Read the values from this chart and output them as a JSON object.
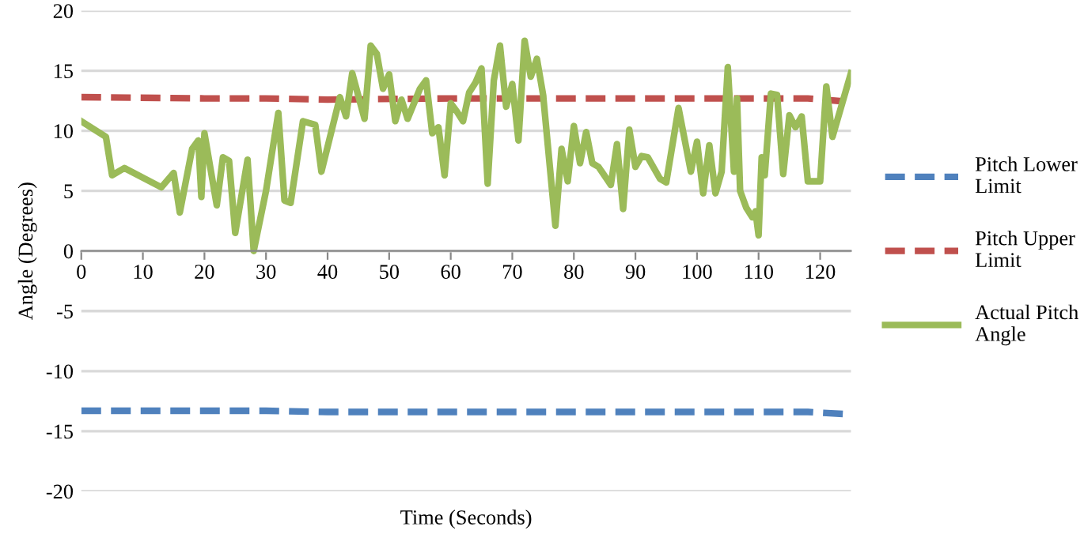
{
  "chart_data": {
    "type": "line",
    "xlabel": "Time (Seconds)",
    "ylabel": "Angle (Degrees)",
    "xlim": [
      0,
      125
    ],
    "xticks": [
      0,
      10,
      20,
      30,
      40,
      50,
      60,
      70,
      80,
      90,
      100,
      110,
      120
    ],
    "ylim": [
      -20,
      20
    ],
    "yticks": [
      -20,
      -15,
      -10,
      -5,
      0,
      5,
      10,
      15,
      20
    ],
    "grid": "y",
    "legend": "right",
    "line_style": "solid",
    "marker": "none",
    "series": [
      {
        "name": "Pitch Lower Limit",
        "color": "#4f81bd",
        "line_style": "dashed",
        "x": [
          0,
          20,
          30,
          40,
          60,
          80,
          100,
          110,
          118,
          125
        ],
        "values": [
          -13.3,
          -13.3,
          -13.3,
          -13.4,
          -13.4,
          -13.4,
          -13.4,
          -13.4,
          -13.4,
          -13.6
        ]
      },
      {
        "name": "Pitch Upper Limit",
        "color": "#c0504d",
        "line_style": "dashed",
        "x": [
          0,
          20,
          30,
          40,
          60,
          80,
          100,
          110,
          118,
          125
        ],
        "values": [
          12.8,
          12.7,
          12.7,
          12.6,
          12.7,
          12.7,
          12.7,
          12.7,
          12.7,
          12.4
        ]
      },
      {
        "name": "Actual Pitch Angle",
        "color": "#9bbb59",
        "x": [
          0,
          4,
          5,
          7,
          13,
          15,
          16,
          18,
          19,
          19.5,
          20,
          22,
          23,
          24,
          25,
          27,
          28,
          30,
          32,
          33,
          34,
          36,
          38,
          39,
          42,
          43,
          44,
          46,
          47,
          48,
          49,
          50,
          51,
          52,
          53,
          55,
          56,
          57,
          58,
          59,
          60,
          61,
          62,
          63,
          64,
          65,
          66,
          67,
          68,
          69,
          70,
          71,
          72,
          73,
          74,
          75,
          77,
          78,
          79,
          80,
          81,
          82,
          83,
          84,
          86,
          87,
          88,
          89,
          90,
          91,
          92,
          94,
          95,
          97,
          99,
          100,
          101,
          102,
          103,
          104,
          105,
          106,
          106.5,
          107,
          108,
          109,
          109.5,
          110,
          110.5,
          111,
          112,
          113,
          114,
          115,
          116,
          117,
          118,
          120,
          121,
          122,
          125
        ],
        "values": [
          10.8,
          9.5,
          6.3,
          6.9,
          5.3,
          6.5,
          3.2,
          8.5,
          9.2,
          4.5,
          9.8,
          3.8,
          7.8,
          7.5,
          1.5,
          7.6,
          0,
          5,
          11.5,
          4.2,
          4,
          10.8,
          10.5,
          6.6,
          12.8,
          11.2,
          14.8,
          11,
          17.1,
          16.4,
          13.5,
          14.7,
          10.8,
          12.6,
          11,
          13.5,
          14.2,
          9.8,
          10.3,
          6.3,
          12.3,
          11.6,
          10.8,
          13.2,
          14,
          15.2,
          5.6,
          14.2,
          17.1,
          12,
          13.9,
          9.2,
          17.5,
          14.5,
          16,
          13,
          2.1,
          8.5,
          5.8,
          10.4,
          7.3,
          9.9,
          7.3,
          7,
          5.5,
          8.9,
          3.5,
          10.1,
          7,
          7.9,
          7.8,
          6,
          5.7,
          11.9,
          6.6,
          9.1,
          4.8,
          8.8,
          4.8,
          6.6,
          15.3,
          6.6,
          12.7,
          5,
          3.6,
          2.8,
          3.3,
          1.3,
          7.8,
          6.3,
          13.1,
          13,
          6.4,
          11.3,
          10.3,
          11.2,
          5.8,
          5.8,
          13.7,
          9.5,
          14.8
        ]
      }
    ]
  }
}
